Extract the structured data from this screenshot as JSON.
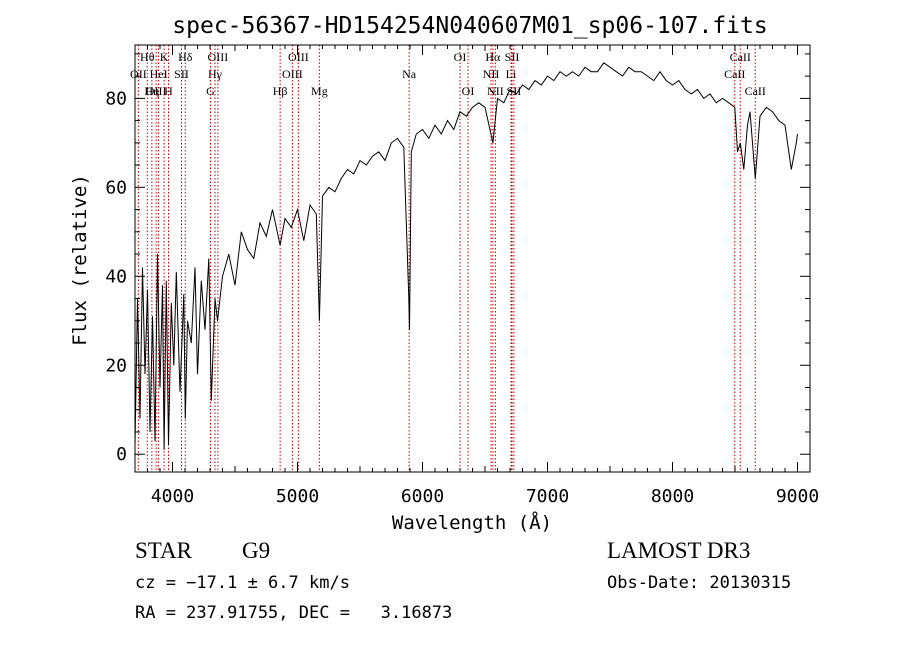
{
  "chart_data": {
    "type": "line",
    "title": "spec-56367-HD154254N040607M01_sp06-107.fits",
    "xlabel": "Wavelength (Å)",
    "ylabel": "Flux (relative)",
    "xlim": [
      3700,
      9100
    ],
    "ylim": [
      -4,
      92
    ],
    "x_ticks": [
      4000,
      5000,
      6000,
      7000,
      8000,
      9000
    ],
    "y_ticks": [
      0,
      20,
      40,
      60,
      80
    ],
    "grid": false,
    "series": [
      {
        "x": [
          3700,
          3720,
          3740,
          3760,
          3780,
          3800,
          3820,
          3840,
          3860,
          3880,
          3900,
          3920,
          3933,
          3950,
          3968,
          3990,
          4010,
          4030,
          4060,
          4090,
          4102,
          4120,
          4150,
          4180,
          4200,
          4230,
          4260,
          4290,
          4310,
          4340,
          4360,
          4400,
          4450,
          4500,
          4550,
          4600,
          4650,
          4700,
          4750,
          4800,
          4861,
          4900,
          4950,
          5000,
          5050,
          5100,
          5150,
          5175,
          5200,
          5250,
          5300,
          5350,
          5400,
          5450,
          5500,
          5550,
          5600,
          5650,
          5700,
          5750,
          5800,
          5850,
          5890,
          5896,
          5910,
          5950,
          6000,
          6050,
          6100,
          6150,
          6200,
          6250,
          6300,
          6350,
          6400,
          6450,
          6500,
          6563,
          6600,
          6650,
          6700,
          6750,
          6800,
          6850,
          6900,
          6950,
          7000,
          7050,
          7100,
          7150,
          7200,
          7250,
          7300,
          7350,
          7400,
          7450,
          7500,
          7550,
          7600,
          7650,
          7700,
          7750,
          7800,
          7850,
          7900,
          7950,
          8000,
          8050,
          8100,
          8150,
          8200,
          8250,
          8300,
          8350,
          8400,
          8450,
          8498,
          8520,
          8542,
          8570,
          8600,
          8620,
          8662,
          8700,
          8750,
          8800,
          8850,
          8900,
          8950,
          8990,
          9000
        ],
        "y": [
          2,
          35,
          8,
          42,
          18,
          37,
          5,
          31,
          3,
          45,
          15,
          38,
          1,
          39,
          2,
          34,
          20,
          41,
          14,
          36,
          8,
          30,
          25,
          42,
          18,
          39,
          28,
          44,
          12,
          35,
          30,
          40,
          45,
          38,
          50,
          46,
          44,
          52,
          49,
          55,
          47,
          53,
          51,
          55,
          48,
          56,
          54,
          30,
          58,
          60,
          59,
          62,
          64,
          63,
          66,
          65,
          67,
          68,
          66,
          70,
          71,
          69,
          35,
          28,
          68,
          72,
          73,
          71,
          74,
          72,
          75,
          73,
          77,
          76,
          78,
          79,
          78,
          70,
          80,
          79,
          82,
          81,
          83,
          82,
          84,
          83,
          85,
          84,
          86,
          85,
          86,
          85,
          87,
          86,
          86,
          88,
          87,
          86,
          85,
          87,
          86,
          86,
          85,
          84,
          86,
          84,
          83,
          84,
          82,
          81,
          82,
          80,
          81,
          79,
          80,
          79,
          78,
          68,
          70,
          64,
          74,
          77,
          62,
          76,
          78,
          77,
          75,
          74,
          64,
          70,
          72
        ]
      }
    ],
    "line_markers": [
      {
        "label": "Hθ",
        "x": 3798,
        "row": 0
      },
      {
        "label": "OII",
        "x": 3727,
        "row": 1
      },
      {
        "label": "OIII",
        "x": 3869,
        "row": 2
      },
      {
        "label": "K",
        "x": 3933,
        "row": 0
      },
      {
        "label": "HeI",
        "x": 3889,
        "row": 1
      },
      {
        "label": "Hη",
        "x": 3835,
        "row": 2
      },
      {
        "label": "Hδ",
        "x": 4102,
        "row": 0
      },
      {
        "label": "SII",
        "x": 4072,
        "row": 1
      },
      {
        "label": "H",
        "x": 3968,
        "row": 2
      },
      {
        "label": "OIII",
        "x": 4363,
        "row": 0
      },
      {
        "label": "Hγ",
        "x": 4340,
        "row": 1
      },
      {
        "label": "G",
        "x": 4304,
        "row": 2
      },
      {
        "label": "OIII",
        "x": 5007,
        "row": 0
      },
      {
        "label": "OIII",
        "x": 4959,
        "row": 1
      },
      {
        "label": "Hβ",
        "x": 4861,
        "row": 2
      },
      {
        "label": "Mg",
        "x": 5175,
        "row": 2
      },
      {
        "label": "Na",
        "x": 5893,
        "row": 1
      },
      {
        "label": "OI",
        "x": 6300,
        "row": 0
      },
      {
        "label": "OI",
        "x": 6364,
        "row": 2
      },
      {
        "label": "Hα",
        "x": 6563,
        "row": 0
      },
      {
        "label": "NII",
        "x": 6548,
        "row": 1
      },
      {
        "label": "NII",
        "x": 6583,
        "row": 2
      },
      {
        "label": "SII",
        "x": 6716,
        "row": 0
      },
      {
        "label": "Li",
        "x": 6708,
        "row": 1
      },
      {
        "label": "SII",
        "x": 6731,
        "row": 2
      },
      {
        "label": "CaII",
        "x": 8542,
        "row": 0
      },
      {
        "label": "CaII",
        "x": 8498,
        "row": 1
      },
      {
        "label": "CaII",
        "x": 8662,
        "row": 2
      }
    ]
  },
  "info": {
    "object_class": "STAR",
    "subclass": "G9",
    "survey": "LAMOST DR3",
    "cz": "cz = −17.1 ± 6.7 km/s",
    "obs_date": "Obs-Date: 20130315",
    "coords": "RA = 237.91755, DEC =   3.16873"
  }
}
